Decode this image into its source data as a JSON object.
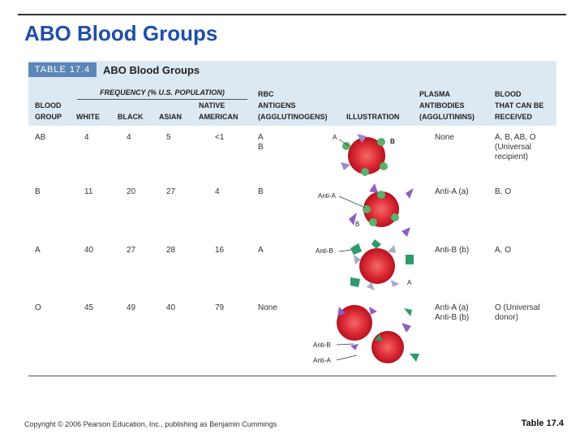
{
  "slide": {
    "title": "ABO Blood Groups",
    "footer": "Copyright © 2006 Pearson Education, Inc., publishing as Benjamin Cummings",
    "caption": "Table 17.4"
  },
  "table": {
    "label": "TABLE 17.4",
    "title": "ABO Blood Groups",
    "frequency_header": "FREQUENCY (% U.S. POPULATION)",
    "columns": [
      "BLOOD\nGROUP",
      "WHITE",
      "BLACK",
      "ASIAN",
      "NATIVE\nAMERICAN",
      "RBC\nANTIGENS\n(AGGLUTINOGENS)",
      "ILLUSTRATION",
      "PLASMA\nANTIBODIES\n(AGGLUTININS)",
      "BLOOD\nTHAT CAN BE\nRECEIVED"
    ],
    "rows": [
      [
        "AB",
        4,
        4,
        5,
        "<1",
        "A\nB",
        "None",
        "A, B, AB, O\n(Universal\nrecipient)"
      ],
      [
        "B",
        11,
        20,
        27,
        4,
        "B",
        "Anti-A (a)",
        "B, O"
      ],
      [
        "A",
        40,
        27,
        28,
        16,
        "A",
        "Anti-B (b)",
        "A, O"
      ],
      [
        "O",
        45,
        49,
        40,
        79,
        "None",
        "Anti-A (a)\nAnti-B (b)",
        "O (Universal\ndonor)"
      ]
    ],
    "illustration_labels": [
      [
        "A",
        "B"
      ],
      [
        "Anti-A",
        "B"
      ],
      [
        "Anti-B",
        "A"
      ],
      [
        "Anti-B",
        "Anti-A"
      ]
    ]
  }
}
